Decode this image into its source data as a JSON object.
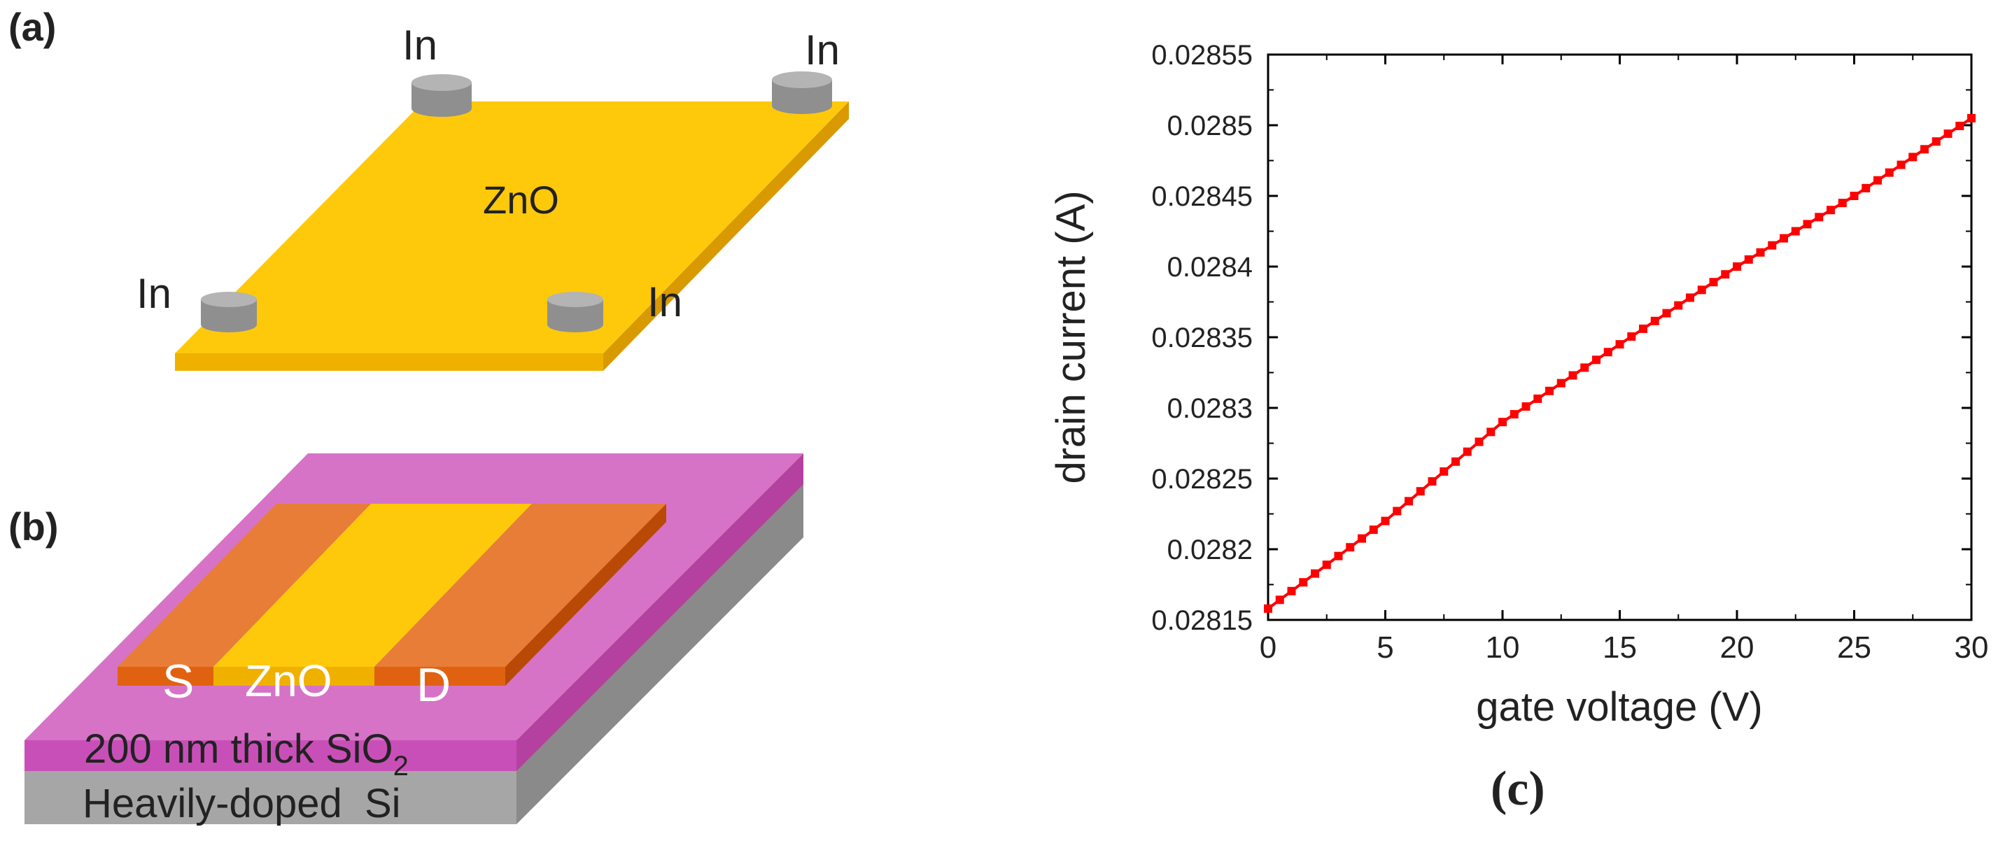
{
  "panel_a": {
    "label": "(a)",
    "film_label": "ZnO",
    "contact_label": "In",
    "colors": {
      "film": "#ffc90b",
      "film_edge": "#e0a400",
      "contact": "#8f8f8f",
      "contact_top": "#b4b4b4"
    }
  },
  "panel_b": {
    "label": "(b)",
    "source_label": "S",
    "channel_label": "ZnO",
    "drain_label": "D",
    "oxide_label": "200 nm thick SiO",
    "oxide_subscript": "2",
    "substrate_label": "Heavily-doped  Si",
    "colors": {
      "oxide": "#d673c7",
      "oxide_side": "#c557b5",
      "substrate": "#a6a6a6",
      "substrate_side": "#8a8a8a",
      "electrode": "#e87d37",
      "electrode_edge": "#e06210",
      "channel": "#ffc90b"
    }
  },
  "panel_c": {
    "label": "(c)",
    "chart_data": {
      "type": "line",
      "xlabel": "gate voltage (V)",
      "ylabel": "drain current (A)",
      "xlim": [
        0,
        30
      ],
      "ylim": [
        0.02815,
        0.02855
      ],
      "x_ticks": [
        "0",
        "5",
        "10",
        "15",
        "20",
        "25",
        "30"
      ],
      "y_ticks": [
        "0.02815",
        "0.0282",
        "0.02825",
        "0.0283",
        "0.02835",
        "0.0284",
        "0.02845",
        "0.0285",
        "0.02855"
      ],
      "series": [
        {
          "color": "#ff0000",
          "marker": "square",
          "x_start": 0,
          "x_end": 30,
          "x_step": 0.5,
          "x_knots": [
            0,
            5,
            10,
            15,
            20,
            25,
            30
          ],
          "y_knots": [
            0.028158,
            0.02822,
            0.02829,
            0.028345,
            0.0284,
            0.02845,
            0.028505
          ]
        }
      ]
    }
  }
}
